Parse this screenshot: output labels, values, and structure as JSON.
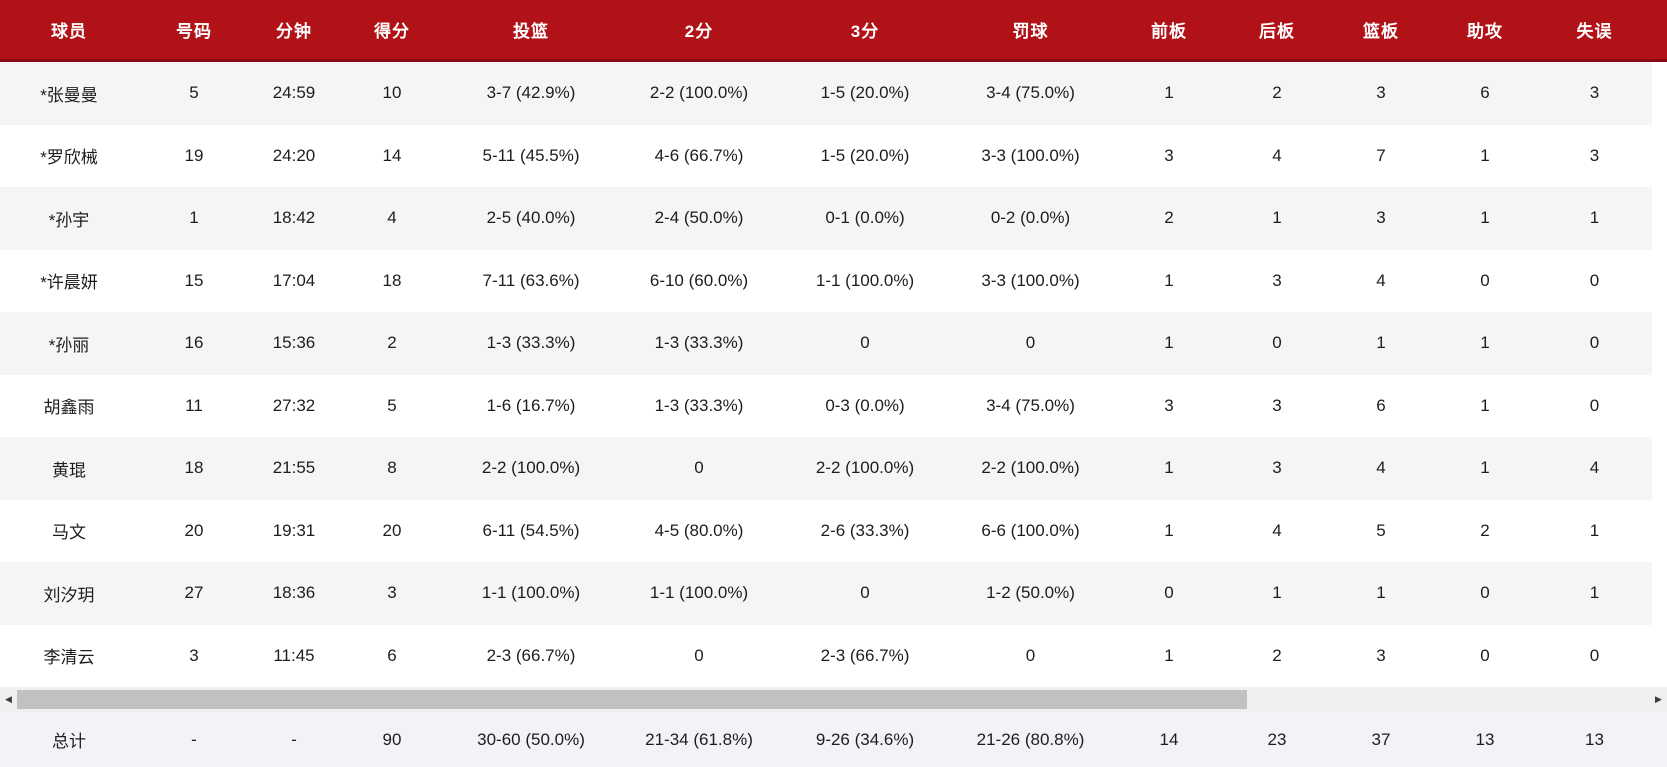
{
  "table": {
    "columns": [
      "球员",
      "号码",
      "分钟",
      "得分",
      "投篮",
      "2分",
      "3分",
      "罚球",
      "前板",
      "后板",
      "篮板",
      "助攻",
      "失误"
    ],
    "column_keys": [
      "player",
      "number",
      "minutes",
      "points",
      "fg",
      "2pt",
      "3pt",
      "ft",
      "oreb",
      "dreb",
      "reb",
      "ast",
      "to"
    ],
    "rows": [
      {
        "cells": [
          "*张曼曼",
          "5",
          "24:59",
          "10",
          "3-7 (42.9%)",
          "2-2 (100.0%)",
          "1-5 (20.0%)",
          "3-4 (75.0%)",
          "1",
          "2",
          "3",
          "6",
          "3"
        ]
      },
      {
        "cells": [
          "*罗欣械",
          "19",
          "24:20",
          "14",
          "5-11 (45.5%)",
          "4-6 (66.7%)",
          "1-5 (20.0%)",
          "3-3 (100.0%)",
          "3",
          "4",
          "7",
          "1",
          "3"
        ]
      },
      {
        "cells": [
          "*孙宇",
          "1",
          "18:42",
          "4",
          "2-5 (40.0%)",
          "2-4 (50.0%)",
          "0-1 (0.0%)",
          "0-2 (0.0%)",
          "2",
          "1",
          "3",
          "1",
          "1"
        ]
      },
      {
        "cells": [
          "*许晨妍",
          "15",
          "17:04",
          "18",
          "7-11 (63.6%)",
          "6-10 (60.0%)",
          "1-1 (100.0%)",
          "3-3 (100.0%)",
          "1",
          "3",
          "4",
          "0",
          "0"
        ]
      },
      {
        "cells": [
          "*孙丽",
          "16",
          "15:36",
          "2",
          "1-3 (33.3%)",
          "1-3 (33.3%)",
          "0",
          "0",
          "1",
          "0",
          "1",
          "1",
          "0"
        ]
      },
      {
        "cells": [
          "胡鑫雨",
          "11",
          "27:32",
          "5",
          "1-6 (16.7%)",
          "1-3 (33.3%)",
          "0-3 (0.0%)",
          "3-4 (75.0%)",
          "3",
          "3",
          "6",
          "1",
          "0"
        ]
      },
      {
        "cells": [
          "黄琨",
          "18",
          "21:55",
          "8",
          "2-2 (100.0%)",
          "0",
          "2-2 (100.0%)",
          "2-2 (100.0%)",
          "1",
          "3",
          "4",
          "1",
          "4"
        ]
      },
      {
        "cells": [
          "马文",
          "20",
          "19:31",
          "20",
          "6-11 (54.5%)",
          "4-5 (80.0%)",
          "2-6 (33.3%)",
          "6-6 (100.0%)",
          "1",
          "4",
          "5",
          "2",
          "1"
        ]
      },
      {
        "cells": [
          "刘汐玥",
          "27",
          "18:36",
          "3",
          "1-1 (100.0%)",
          "1-1 (100.0%)",
          "0",
          "1-2 (50.0%)",
          "0",
          "1",
          "1",
          "0",
          "1"
        ]
      },
      {
        "cells": [
          "李清云",
          "3",
          "11:45",
          "6",
          "2-3 (66.7%)",
          "0",
          "2-3 (66.7%)",
          "0",
          "1",
          "2",
          "3",
          "0",
          "0"
        ]
      }
    ],
    "total": [
      "总计",
      "-",
      "-",
      "90",
      "30-60 (50.0%)",
      "21-34 (61.8%)",
      "9-26 (34.6%)",
      "21-26 (80.8%)",
      "14",
      "23",
      "37",
      "13",
      "13"
    ]
  },
  "icons": {
    "scrollbar_left": "◀",
    "scrollbar_right": "▶"
  },
  "colors": {
    "header_bg": "#B01218",
    "header_border": "#850D12",
    "header_text": "#FFFFFF",
    "row_odd_bg": "#F5F5F6",
    "row_even_bg": "#FFFFFF",
    "total_bg": "#F1F3F7",
    "cell_text": "#1D1D1D",
    "scrollbar_track": "#F0F0F0",
    "scrollbar_thumb": "#C1C1C1"
  }
}
